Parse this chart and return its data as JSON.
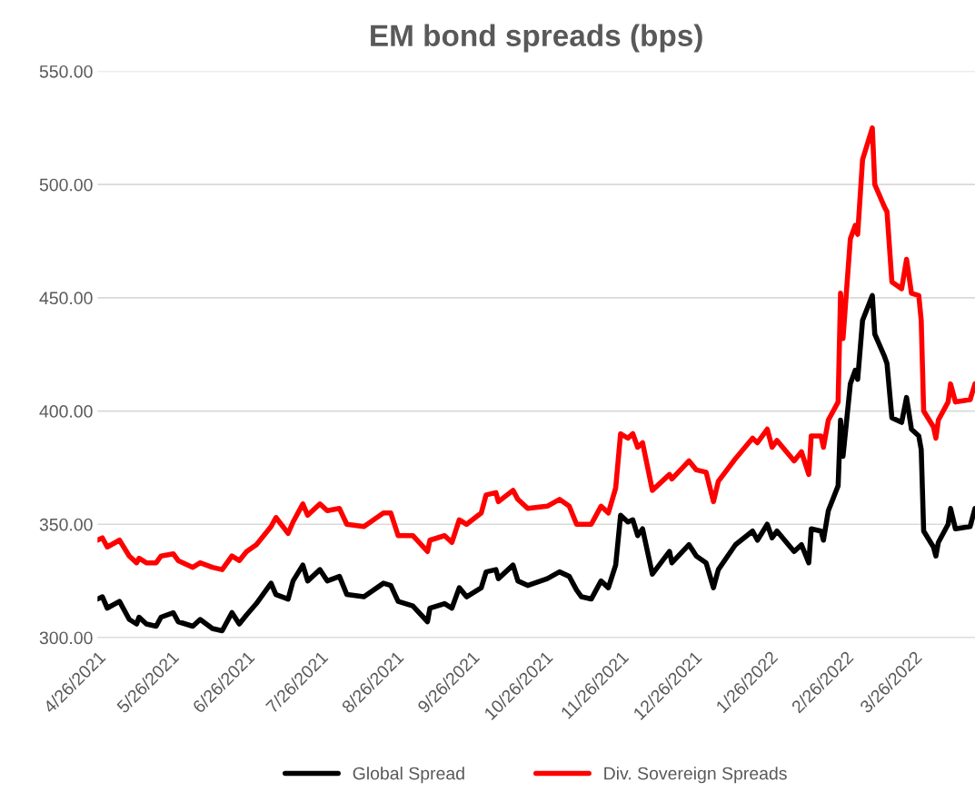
{
  "chart_data": {
    "type": "line",
    "title": "EM bond spreads (bps)",
    "x": [
      "2021-04-26",
      "2021-04-28",
      "2021-04-30",
      "2021-05-05",
      "2021-05-09",
      "2021-05-12",
      "2021-05-13",
      "2021-05-16",
      "2021-05-20",
      "2021-05-22",
      "2021-05-27",
      "2021-05-29",
      "2021-06-04",
      "2021-06-07",
      "2021-06-12",
      "2021-06-16",
      "2021-06-20",
      "2021-06-23",
      "2021-06-26",
      "2021-06-30",
      "2021-07-06",
      "2021-07-08",
      "2021-07-13",
      "2021-07-15",
      "2021-07-19",
      "2021-07-21",
      "2021-07-26",
      "2021-07-29",
      "2021-08-03",
      "2021-08-06",
      "2021-08-13",
      "2021-08-21",
      "2021-08-24",
      "2021-08-27",
      "2021-09-02",
      "2021-09-08",
      "2021-09-09",
      "2021-09-15",
      "2021-09-18",
      "2021-09-21",
      "2021-09-24",
      "2021-09-30",
      "2021-10-02",
      "2021-10-06",
      "2021-10-07",
      "2021-10-13",
      "2021-10-15",
      "2021-10-19",
      "2021-10-27",
      "2021-11-01",
      "2021-11-05",
      "2021-11-08",
      "2021-11-10",
      "2021-11-14",
      "2021-11-18",
      "2021-11-21",
      "2021-11-24",
      "2021-11-26",
      "2021-11-29",
      "2021-12-01",
      "2021-12-03",
      "2021-12-05",
      "2021-12-09",
      "2021-12-16",
      "2021-12-17",
      "2021-12-24",
      "2021-12-27",
      "2021-12-31",
      "2022-01-03",
      "2022-01-05",
      "2022-01-12",
      "2022-01-19",
      "2022-01-21",
      "2022-01-25",
      "2022-01-27",
      "2022-01-29",
      "2022-02-05",
      "2022-02-08",
      "2022-02-11",
      "2022-02-12",
      "2022-02-16",
      "2022-02-17",
      "2022-02-19",
      "2022-02-23",
      "2022-02-24",
      "2022-02-25",
      "2022-02-28",
      "2022-03-02",
      "2022-03-03",
      "2022-03-05",
      "2022-03-09",
      "2022-03-10",
      "2022-03-14",
      "2022-03-15",
      "2022-03-17",
      "2022-03-21",
      "2022-03-23",
      "2022-03-25",
      "2022-03-28",
      "2022-03-29",
      "2022-03-30",
      "2022-04-03",
      "2022-04-04",
      "2022-04-05",
      "2022-04-09",
      "2022-04-10",
      "2022-04-12",
      "2022-04-18",
      "2022-04-20"
    ],
    "series": [
      {
        "name": "Global Spread",
        "color": "#000000",
        "values": [
          317,
          318,
          313,
          316,
          308,
          306,
          309,
          306,
          305,
          309,
          311,
          307,
          305,
          308,
          304,
          303,
          311,
          306,
          310,
          315,
          324,
          319,
          317,
          325,
          332,
          325,
          330,
          325,
          327,
          319,
          318,
          324,
          323,
          316,
          314,
          307,
          313,
          315,
          313,
          322,
          318,
          322,
          329,
          330,
          326,
          332,
          325,
          323,
          326,
          329,
          327,
          321,
          318,
          317,
          325,
          322,
          332,
          354,
          351,
          352,
          345,
          348,
          328,
          338,
          333,
          341,
          336,
          333,
          322,
          330,
          341,
          347,
          343,
          350,
          344,
          347,
          338,
          341,
          333,
          348,
          347,
          343,
          356,
          367,
          396,
          380,
          412,
          418,
          414,
          440,
          451,
          434,
          424,
          421,
          397,
          395,
          406,
          392,
          389,
          383,
          347,
          340,
          336,
          342,
          350,
          357,
          348,
          349,
          357
        ]
      },
      {
        "name": "Div. Sovereign Spreads",
        "color": "#ff0000",
        "values": [
          343,
          344,
          340,
          343,
          336,
          333,
          335,
          333,
          333,
          336,
          337,
          334,
          331,
          333,
          331,
          330,
          336,
          334,
          338,
          341,
          349,
          353,
          346,
          351,
          359,
          354,
          359,
          356,
          357,
          350,
          349,
          355,
          355,
          345,
          345,
          338,
          343,
          345,
          342,
          352,
          350,
          355,
          363,
          364,
          360,
          365,
          361,
          357,
          358,
          361,
          358,
          350,
          350,
          350,
          358,
          355,
          366,
          390,
          388,
          390,
          384,
          386,
          365,
          372,
          370,
          378,
          374,
          373,
          360,
          369,
          379,
          388,
          386,
          392,
          384,
          387,
          378,
          382,
          372,
          389,
          389,
          384,
          396,
          404,
          452,
          432,
          476,
          482,
          478,
          511,
          525,
          500,
          490,
          488,
          457,
          454,
          467,
          452,
          451,
          440,
          400,
          393,
          388,
          396,
          404,
          412,
          404,
          405,
          412
        ]
      }
    ],
    "xlim": [
      "2021-04-26",
      "2022-04-20"
    ],
    "xticks": [
      {
        "value": "2021-04-26",
        "label": "4/26/2021"
      },
      {
        "value": "2021-05-26",
        "label": "5/26/2021"
      },
      {
        "value": "2021-06-26",
        "label": "6/26/2021"
      },
      {
        "value": "2021-07-26",
        "label": "7/26/2021"
      },
      {
        "value": "2021-08-26",
        "label": "8/26/2021"
      },
      {
        "value": "2021-09-26",
        "label": "9/26/2021"
      },
      {
        "value": "2021-10-26",
        "label": "10/26/2021"
      },
      {
        "value": "2021-11-26",
        "label": "11/26/2021"
      },
      {
        "value": "2021-12-26",
        "label": "12/26/2021"
      },
      {
        "value": "2022-01-26",
        "label": "1/26/2022"
      },
      {
        "value": "2022-02-26",
        "label": "2/26/2022"
      },
      {
        "value": "2022-03-26",
        "label": "3/26/2022"
      }
    ],
    "ylim": [
      300,
      550
    ],
    "yticks": [
      {
        "value": 300,
        "label": "300.00"
      },
      {
        "value": 350,
        "label": "350.00"
      },
      {
        "value": 400,
        "label": "400.00"
      },
      {
        "value": 450,
        "label": "450.00"
      },
      {
        "value": 500,
        "label": "500.00"
      },
      {
        "value": 550,
        "label": "550.00"
      }
    ],
    "grid": "y",
    "legend": "bottom",
    "marker": "none",
    "line_style": "solid"
  }
}
